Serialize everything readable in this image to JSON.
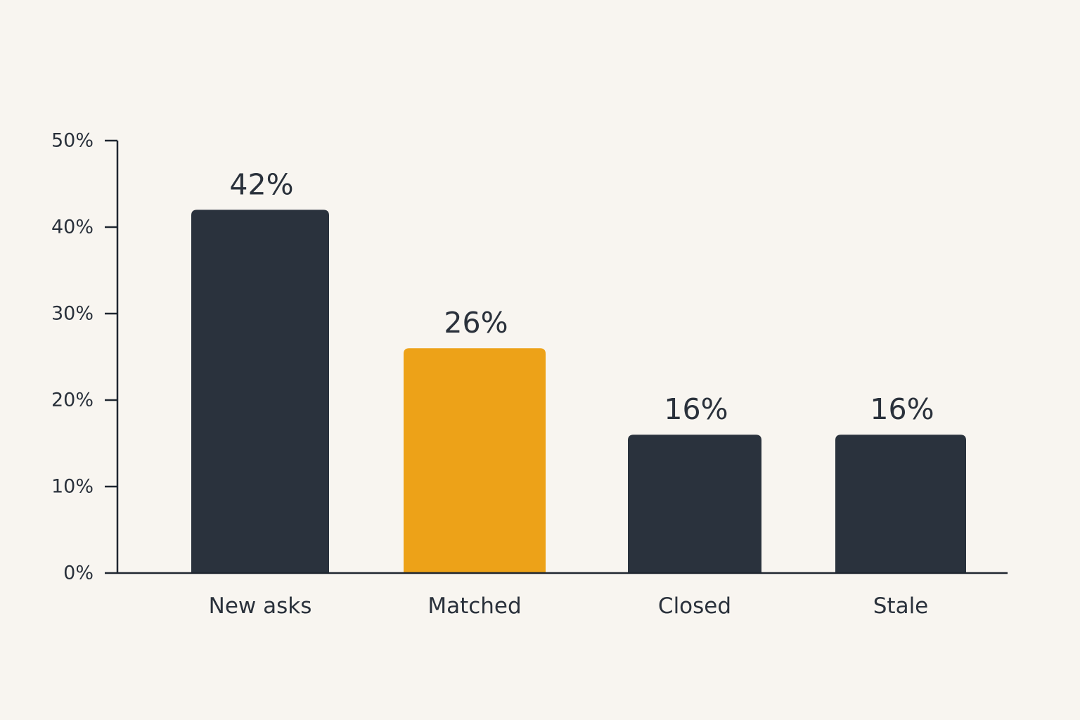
{
  "chart_data": {
    "type": "bar",
    "title": "",
    "xlabel": "",
    "ylabel": "",
    "categories": [
      "New asks",
      "Matched",
      "Closed",
      "Stale"
    ],
    "values": [
      42,
      26,
      16,
      16
    ],
    "data_labels": [
      "42%",
      "26%",
      "16%",
      "16%"
    ],
    "ylim": [
      0,
      50
    ],
    "yticks": [
      0,
      10,
      20,
      30,
      40,
      50
    ],
    "ytick_labels": [
      "0%",
      "10%",
      "20%",
      "30%",
      "40%",
      "50%"
    ],
    "grid": false,
    "legend": "none",
    "colors": {
      "default_bar": "#2a323d",
      "highlight_bar": "#eda218",
      "highlight_category": "Matched",
      "text": "#2a313b",
      "axis": "#1f2630",
      "background": "#f8f5f0"
    }
  }
}
